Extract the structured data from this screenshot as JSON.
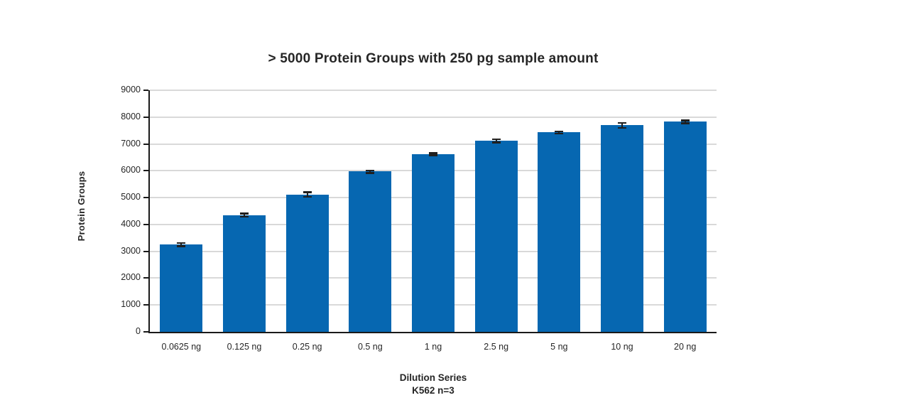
{
  "chart_data": {
    "type": "bar",
    "title": "> 5000 Protein Groups with 250 pg sample amount",
    "ylabel": "Protein Groups",
    "xlabel": "Dilution Series",
    "xlabel_sub": "K562 n=3",
    "categories": [
      "0.0625 ng",
      "0.125 ng",
      "0.25 ng",
      "0.5 ng",
      "1 ng",
      "2.5 ng",
      "5 ng",
      "10 ng",
      "20 ng"
    ],
    "values": [
      3250,
      4350,
      5120,
      5970,
      6620,
      7120,
      7430,
      7700,
      7830
    ],
    "errors": [
      60,
      60,
      90,
      50,
      40,
      60,
      40,
      90,
      50
    ],
    "ylim": [
      0,
      9000
    ],
    "ytick_step": 1000,
    "grid": true,
    "legend": "none",
    "bar_color": "#0667b1",
    "grid_color": "#d9d9d9",
    "axis_color": "#1a1a1a",
    "error_color": "#1f1f1f",
    "text_color": "#262626"
  }
}
